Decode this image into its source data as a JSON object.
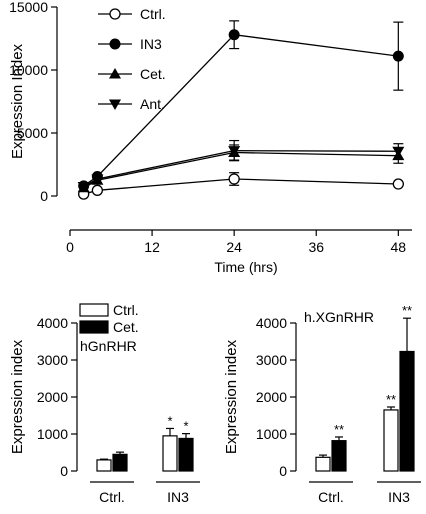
{
  "chart_data": [
    {
      "type": "line",
      "ylabel": "Expression Index",
      "xlabel": "Time (hrs)",
      "xlim": [
        0,
        50
      ],
      "ylim": [
        0,
        15000
      ],
      "xticks": [
        0,
        12,
        24,
        36,
        48
      ],
      "yticks": [
        0,
        5000,
        10000,
        15000
      ],
      "legend_position": "top-left",
      "series": [
        {
          "name": "Ctrl.",
          "marker": "circle-open",
          "x": [
            2,
            4,
            24,
            48
          ],
          "y": [
            150,
            450,
            1350,
            950
          ],
          "err": [
            0,
            0,
            500,
            0
          ]
        },
        {
          "name": "IN3",
          "marker": "circle-filled",
          "x": [
            2,
            4,
            24,
            48
          ],
          "y": [
            800,
            1550,
            12800,
            11100
          ],
          "err": [
            0,
            0,
            1100,
            2700
          ]
        },
        {
          "name": "Cet.",
          "marker": "triangle-up",
          "x": [
            2,
            4,
            24,
            48
          ],
          "y": [
            650,
            1250,
            3450,
            3200
          ],
          "err": [
            0,
            0,
            600,
            600
          ]
        },
        {
          "name": "Ant.",
          "marker": "triangle-down",
          "x": [
            2,
            4,
            24,
            48
          ],
          "y": [
            750,
            1350,
            3600,
            3550
          ],
          "err": [
            0,
            0,
            800,
            600
          ]
        }
      ]
    },
    {
      "type": "bar",
      "ylabel": "Expression index",
      "annotation": "hGnRHR",
      "categories": [
        "Ctrl.",
        "IN3"
      ],
      "ylim": [
        0,
        4000
      ],
      "yticks": [
        0,
        1000,
        2000,
        3000,
        4000
      ],
      "legend_position": "top-left",
      "series": [
        {
          "name": "Ctrl.",
          "fill": "#ffffff",
          "values": [
            300,
            950
          ],
          "err": [
            20,
            200
          ],
          "sig": [
            "",
            "*"
          ]
        },
        {
          "name": "Cet.",
          "fill": "#000000",
          "values": [
            450,
            880
          ],
          "err": [
            60,
            130
          ],
          "sig": [
            "",
            "*"
          ]
        }
      ]
    },
    {
      "type": "bar",
      "ylabel": "Expression index",
      "annotation": "h.XGnRHR",
      "categories": [
        "Ctrl.",
        "IN3"
      ],
      "ylim": [
        0,
        4000
      ],
      "yticks": [
        0,
        1000,
        2000,
        3000,
        4000
      ],
      "series": [
        {
          "name": "Ctrl.",
          "fill": "#ffffff",
          "values": [
            370,
            1650
          ],
          "err": [
            60,
            80
          ],
          "sig": [
            "",
            "**"
          ]
        },
        {
          "name": "Cet.",
          "fill": "#000000",
          "values": [
            820,
            3230
          ],
          "err": [
            100,
            900
          ],
          "sig": [
            "**",
            "**"
          ]
        }
      ]
    }
  ]
}
